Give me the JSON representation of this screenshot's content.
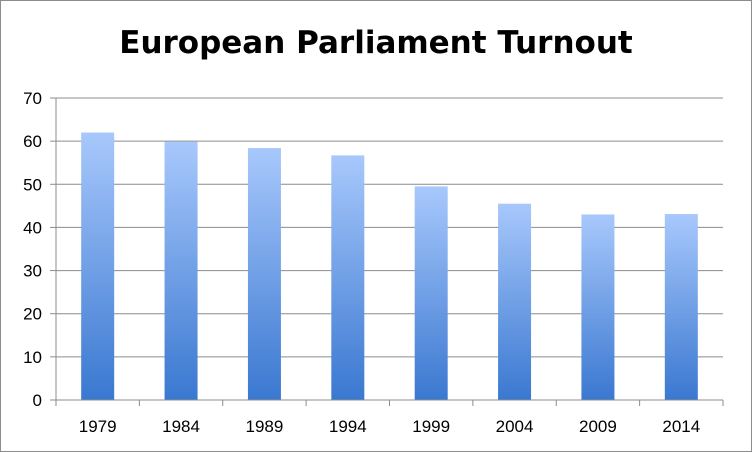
{
  "chart_data": {
    "type": "bar",
    "title": "European Parliament Turnout",
    "xlabel": "",
    "ylabel": "",
    "categories": [
      "1979",
      "1984",
      "1989",
      "1994",
      "1999",
      "2004",
      "2009",
      "2014"
    ],
    "values": [
      62,
      59.9,
      58.4,
      56.7,
      49.5,
      45.5,
      43,
      43.1
    ],
    "ylim": [
      0,
      70
    ],
    "yticks": [
      "0",
      "10",
      "20",
      "30",
      "40",
      "50",
      "60",
      "70"
    ],
    "grid": true,
    "legend": "none",
    "colors": {
      "bar_top": "#a8c8fc",
      "bar_bottom": "#3a78d0",
      "grid": "#8c8c8c",
      "axis": "#8c8c8c"
    }
  }
}
